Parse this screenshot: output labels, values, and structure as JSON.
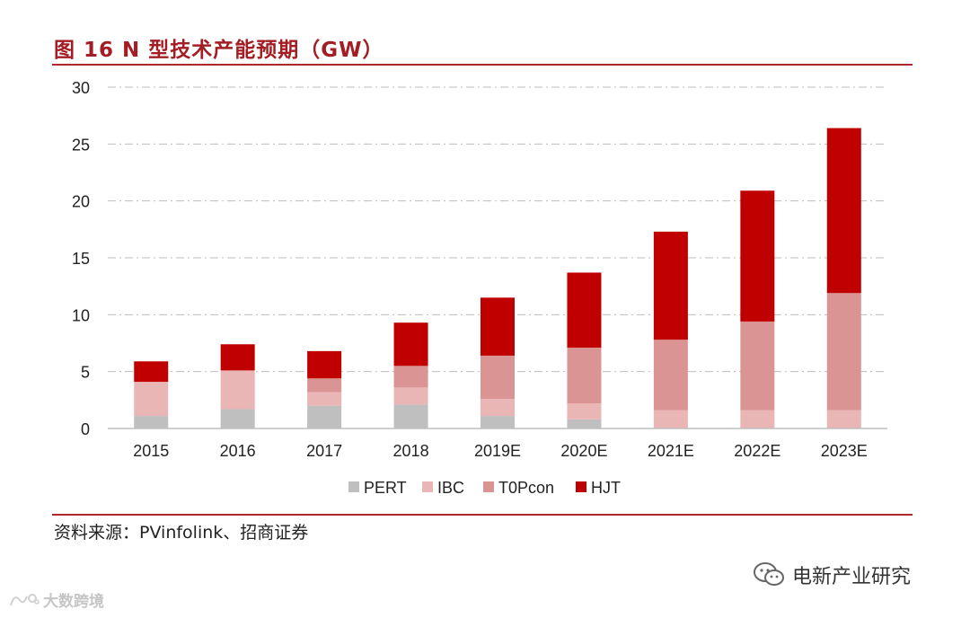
{
  "figure": {
    "title": "图 16 N 型技术产能预期（GW）",
    "source": "资料来源：PVinfolink、招商证券"
  },
  "colors": {
    "accent": "#a31e24",
    "PERT": "#bfbfbf",
    "IBC": "#eab5b5",
    "TOPcon": "#db9494",
    "HJT": "#c00000"
  },
  "chart_data": {
    "type": "bar",
    "stacked": true,
    "title": "图 16 N 型技术产能预期（GW）",
    "xlabel": "",
    "ylabel": "",
    "categories": [
      "2015",
      "2016",
      "2017",
      "2018",
      "2019E",
      "2020E",
      "2021E",
      "2022E",
      "2023E"
    ],
    "ylim": [
      0,
      30
    ],
    "yticks": [
      "0",
      "5",
      "10",
      "15",
      "20",
      "25",
      "30"
    ],
    "grid": true,
    "legend_position": "bottom",
    "series": [
      {
        "name": "PERT",
        "values": [
          1.1,
          1.7,
          2.0,
          2.1,
          1.1,
          0.8,
          0,
          0,
          0
        ]
      },
      {
        "name": "IBC",
        "values": [
          3.0,
          3.4,
          1.2,
          1.5,
          1.5,
          1.4,
          1.6,
          1.6,
          1.6
        ]
      },
      {
        "name": "TOPcon",
        "values": [
          0,
          0,
          1.2,
          1.9,
          3.8,
          4.9,
          6.2,
          7.8,
          10.3
        ]
      },
      {
        "name": "HJT",
        "values": [
          1.8,
          2.3,
          2.4,
          3.8,
          5.1,
          6.6,
          9.5,
          11.5,
          14.5
        ]
      }
    ]
  },
  "legend": {
    "items": [
      "PERT",
      "IBC",
      "T0Pcon",
      "HJT"
    ]
  },
  "branding": {
    "wechat_account": "电新产业研究",
    "watermark": "大数跨境"
  }
}
